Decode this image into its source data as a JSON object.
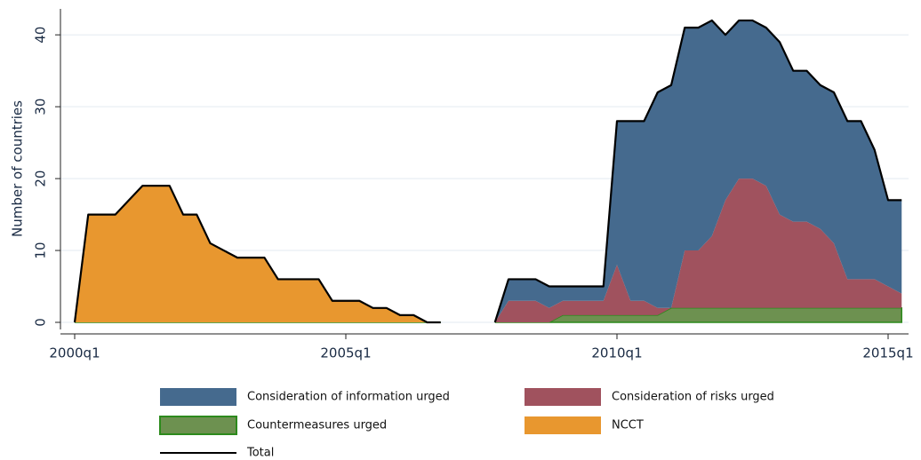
{
  "chart_data": {
    "type": "stacked_area",
    "y_label": "Number of countries",
    "x": [
      "2000q1",
      "2000q2",
      "2000q3",
      "2000q4",
      "2001q1",
      "2001q2",
      "2001q3",
      "2001q4",
      "2002q1",
      "2002q2",
      "2002q3",
      "2002q4",
      "2003q1",
      "2003q2",
      "2003q3",
      "2003q4",
      "2004q1",
      "2004q2",
      "2004q3",
      "2004q4",
      "2005q1",
      "2005q2",
      "2005q3",
      "2005q4",
      "2006q1",
      "2006q2",
      "2006q3",
      "2006q4",
      "2007q1",
      "2007q2",
      "2007q3",
      "2007q4",
      "2008q1",
      "2008q2",
      "2008q3",
      "2008q4",
      "2009q1",
      "2009q2",
      "2009q3",
      "2009q4",
      "2010q1",
      "2010q2",
      "2010q3",
      "2010q4",
      "2011q1",
      "2011q2",
      "2011q3",
      "2011q4",
      "2012q1",
      "2012q2",
      "2012q3",
      "2012q4",
      "2013q1",
      "2013q2",
      "2013q3",
      "2013q4",
      "2014q1",
      "2014q2",
      "2014q3",
      "2014q4",
      "2015q1",
      "2015q2"
    ],
    "xticks": [
      "2000q1",
      "2005q1",
      "2010q1",
      "2015q1"
    ],
    "ylim": [
      0,
      42.5
    ],
    "yticks": [
      0,
      10,
      20,
      30,
      40
    ],
    "grid": true,
    "series": [
      {
        "name": "Consideration of information urged",
        "color": "#456a8e",
        "values": [
          0,
          0,
          0,
          0,
          0,
          0,
          0,
          0,
          0,
          0,
          0,
          0,
          0,
          0,
          0,
          0,
          0,
          0,
          0,
          0,
          0,
          0,
          0,
          0,
          0,
          0,
          0,
          0,
          null,
          null,
          null,
          0,
          3,
          3,
          3,
          3,
          2,
          2,
          2,
          2,
          20,
          25,
          25,
          30,
          31,
          31,
          31,
          30,
          23,
          22,
          22,
          22,
          24,
          21,
          21,
          20,
          21,
          22,
          22,
          18,
          12,
          13
        ]
      },
      {
        "name": "Consideration of risks urged",
        "color": "#a0525e",
        "values": [
          0,
          0,
          0,
          0,
          0,
          0,
          0,
          0,
          0,
          0,
          0,
          0,
          0,
          0,
          0,
          0,
          0,
          0,
          0,
          0,
          0,
          0,
          0,
          0,
          0,
          0,
          0,
          0,
          null,
          null,
          null,
          0,
          3,
          3,
          3,
          2,
          2,
          2,
          2,
          2,
          7,
          2,
          2,
          1,
          0,
          8,
          8,
          10,
          15,
          18,
          18,
          17,
          13,
          12,
          12,
          11,
          9,
          4,
          4,
          4,
          3,
          2
        ]
      },
      {
        "name": "Countermeasures urged",
        "color": "#6d9150",
        "values": [
          0,
          0,
          0,
          0,
          0,
          0,
          0,
          0,
          0,
          0,
          0,
          0,
          0,
          0,
          0,
          0,
          0,
          0,
          0,
          0,
          0,
          0,
          0,
          0,
          0,
          0,
          0,
          0,
          null,
          null,
          null,
          0,
          0,
          0,
          0,
          0,
          1,
          1,
          1,
          1,
          1,
          1,
          1,
          1,
          2,
          2,
          2,
          2,
          2,
          2,
          2,
          2,
          2,
          2,
          2,
          2,
          2,
          2,
          2,
          2,
          2,
          2
        ]
      },
      {
        "name": "NCCT",
        "color": "#e8972f",
        "values": [
          0,
          15,
          15,
          15,
          17,
          19,
          19,
          19,
          15,
          15,
          11,
          10,
          9,
          9,
          9,
          6,
          6,
          6,
          6,
          3,
          3,
          3,
          2,
          2,
          1,
          1,
          0,
          0,
          null,
          null,
          null,
          0,
          0,
          0,
          0,
          0,
          0,
          0,
          0,
          0,
          0,
          0,
          0,
          0,
          0,
          0,
          0,
          0,
          0,
          0,
          0,
          0,
          0,
          0,
          0,
          0,
          0,
          0,
          0,
          0,
          0,
          0
        ]
      }
    ],
    "total": {
      "name": "Total",
      "color": "#000000"
    }
  }
}
